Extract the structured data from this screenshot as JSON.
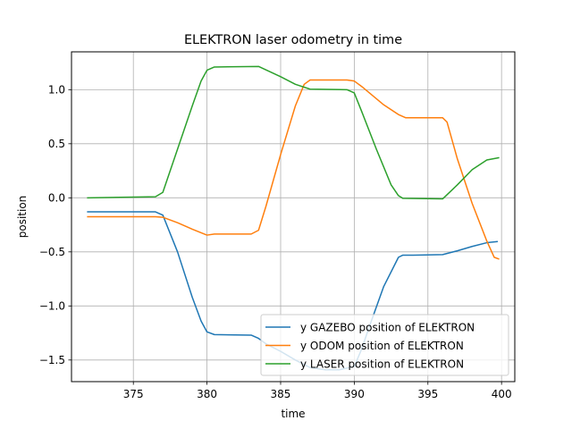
{
  "chart_data": {
    "type": "line",
    "title": "ELEKTRON laser odometry in time",
    "xlabel": "time",
    "ylabel": "position",
    "xlim": [
      370.8,
      400.9
    ],
    "ylim": [
      -1.7,
      1.35
    ],
    "xticks": [
      375,
      380,
      385,
      390,
      395,
      400
    ],
    "yticks": [
      -1.5,
      -1.0,
      -0.5,
      0.0,
      0.5,
      1.0
    ],
    "xtick_labels": [
      "375",
      "380",
      "385",
      "390",
      "395",
      "400"
    ],
    "ytick_labels": [
      "−1.5",
      "−1.0",
      "−0.5",
      "0.0",
      "0.5",
      "1.0"
    ],
    "grid": true,
    "legend_position": "lower-right",
    "series": [
      {
        "name": "y GAZEBO position of ELEKTRON",
        "color": "#1f77b4",
        "x": [
          371.9,
          376.5,
          377.0,
          378.0,
          379.0,
          379.6,
          380.0,
          380.5,
          383.0,
          383.5,
          384.0,
          385.0,
          386.0,
          387.0,
          388.0,
          389.0,
          390.0,
          390.5,
          391.0,
          392.0,
          393.0,
          393.3,
          394.0,
          396.0,
          397.0,
          398.0,
          399.0,
          399.7
        ],
        "y": [
          -0.13,
          -0.13,
          -0.16,
          -0.5,
          -0.92,
          -1.14,
          -1.24,
          -1.265,
          -1.27,
          -1.3,
          -1.35,
          -1.42,
          -1.5,
          -1.57,
          -1.59,
          -1.59,
          -1.56,
          -1.4,
          -1.2,
          -0.82,
          -0.55,
          -0.53,
          -0.53,
          -0.525,
          -0.49,
          -0.45,
          -0.415,
          -0.405
        ]
      },
      {
        "name": "y ODOM position of ELEKTRON",
        "color": "#ff7f0e",
        "x": [
          371.9,
          376.5,
          377.0,
          378.0,
          379.0,
          380.0,
          380.5,
          383.0,
          383.5,
          384.0,
          385.0,
          386.0,
          386.6,
          387.0,
          389.5,
          390.0,
          390.5,
          392.0,
          393.0,
          393.5,
          396.0,
          396.3,
          397.0,
          398.0,
          399.0,
          399.5,
          399.8
        ],
        "y": [
          -0.175,
          -0.175,
          -0.18,
          -0.23,
          -0.29,
          -0.345,
          -0.335,
          -0.335,
          -0.3,
          -0.08,
          0.4,
          0.85,
          1.05,
          1.09,
          1.09,
          1.08,
          1.03,
          0.86,
          0.77,
          0.74,
          0.74,
          0.7,
          0.36,
          -0.05,
          -0.4,
          -0.55,
          -0.565
        ]
      },
      {
        "name": "y LASER position of ELEKTRON",
        "color": "#2ca02c",
        "x": [
          371.9,
          376.5,
          377.0,
          378.0,
          379.0,
          379.6,
          380.0,
          380.5,
          383.5,
          385.0,
          386.0,
          387.0,
          389.5,
          390.0,
          390.5,
          391.5,
          392.5,
          393.0,
          393.3,
          396.0,
          397.0,
          398.0,
          399.0,
          399.8
        ],
        "y": [
          0.0,
          0.01,
          0.05,
          0.45,
          0.85,
          1.08,
          1.18,
          1.21,
          1.215,
          1.12,
          1.05,
          1.005,
          1.0,
          0.97,
          0.8,
          0.45,
          0.12,
          0.02,
          -0.005,
          -0.01,
          0.12,
          0.26,
          0.35,
          0.37
        ]
      }
    ]
  }
}
